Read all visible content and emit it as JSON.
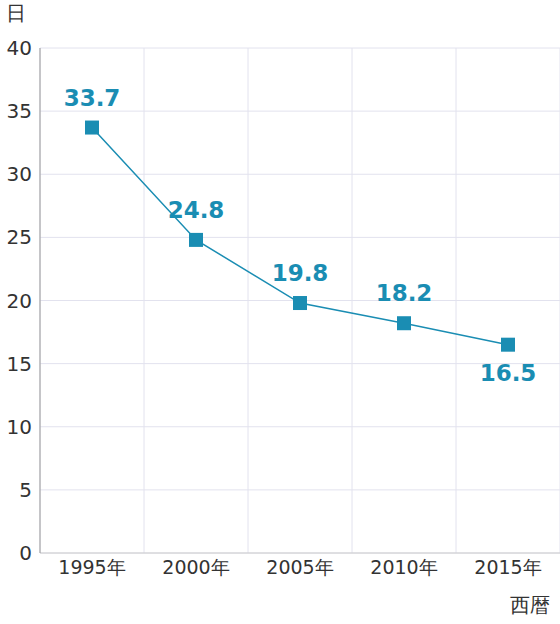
{
  "chart_data": {
    "type": "line",
    "y_label": "日",
    "x_label": "西暦",
    "categories": [
      "1995年",
      "2000年",
      "2005年",
      "2010年",
      "2015年"
    ],
    "values": [
      33.7,
      24.8,
      19.8,
      18.2,
      16.5
    ],
    "color": "#1a8db3",
    "marker": "square",
    "ylim": [
      0,
      40
    ],
    "yticks": [
      0,
      5,
      10,
      15,
      20,
      25,
      30,
      35,
      40
    ],
    "grid": true,
    "data_labels": true
  }
}
